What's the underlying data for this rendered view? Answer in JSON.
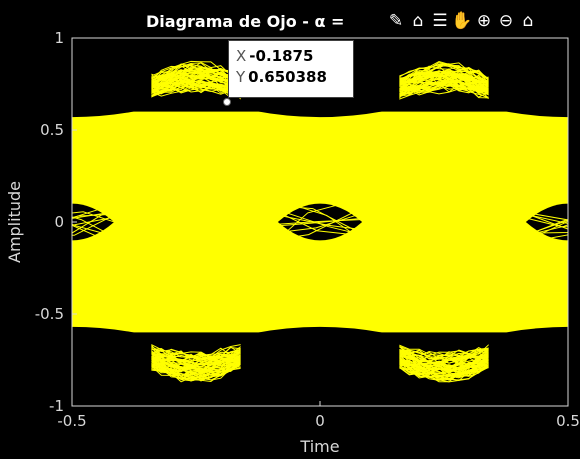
{
  "chart_data": {
    "type": "line",
    "title": "Diagrama de Ojo - α = ",
    "xlabel": "Time",
    "ylabel": "Amplitude",
    "xlim": [
      -0.5,
      0.5
    ],
    "ylim": [
      -1,
      1
    ],
    "x_ticks": [
      "-0.5",
      "0",
      "0.5"
    ],
    "y_ticks": [
      "1",
      "0.5",
      "0",
      "-0.5",
      "-1"
    ],
    "grid": false,
    "series": [
      {
        "color": "#ffff00",
        "levels": [
          0.6,
          -0.6
        ],
        "crossings": [
          -0.5,
          0.0,
          0.5
        ],
        "style": "overlaid traces"
      }
    ],
    "datatip": {
      "x_key": "X",
      "x_value": "-0.1875",
      "y_key": "Y",
      "y_value": "0.650388",
      "x": -0.1875,
      "y": 0.650388
    }
  },
  "colors": {
    "background": "#000000",
    "trace": "#ffff00",
    "text": "#d8d8d8",
    "datatip_bg": "#ffffff"
  },
  "toolbar": [
    {
      "name": "brush-icon",
      "glyph": "✎"
    },
    {
      "name": "data-tips-icon",
      "glyph": "⌂"
    },
    {
      "name": "legend-icon",
      "glyph": "☰"
    },
    {
      "name": "pan-hand-icon",
      "glyph": "✋"
    },
    {
      "name": "zoom-in-icon",
      "glyph": "⊕"
    },
    {
      "name": "zoom-out-icon",
      "glyph": "⊖"
    },
    {
      "name": "home-icon",
      "glyph": "⌂"
    }
  ]
}
